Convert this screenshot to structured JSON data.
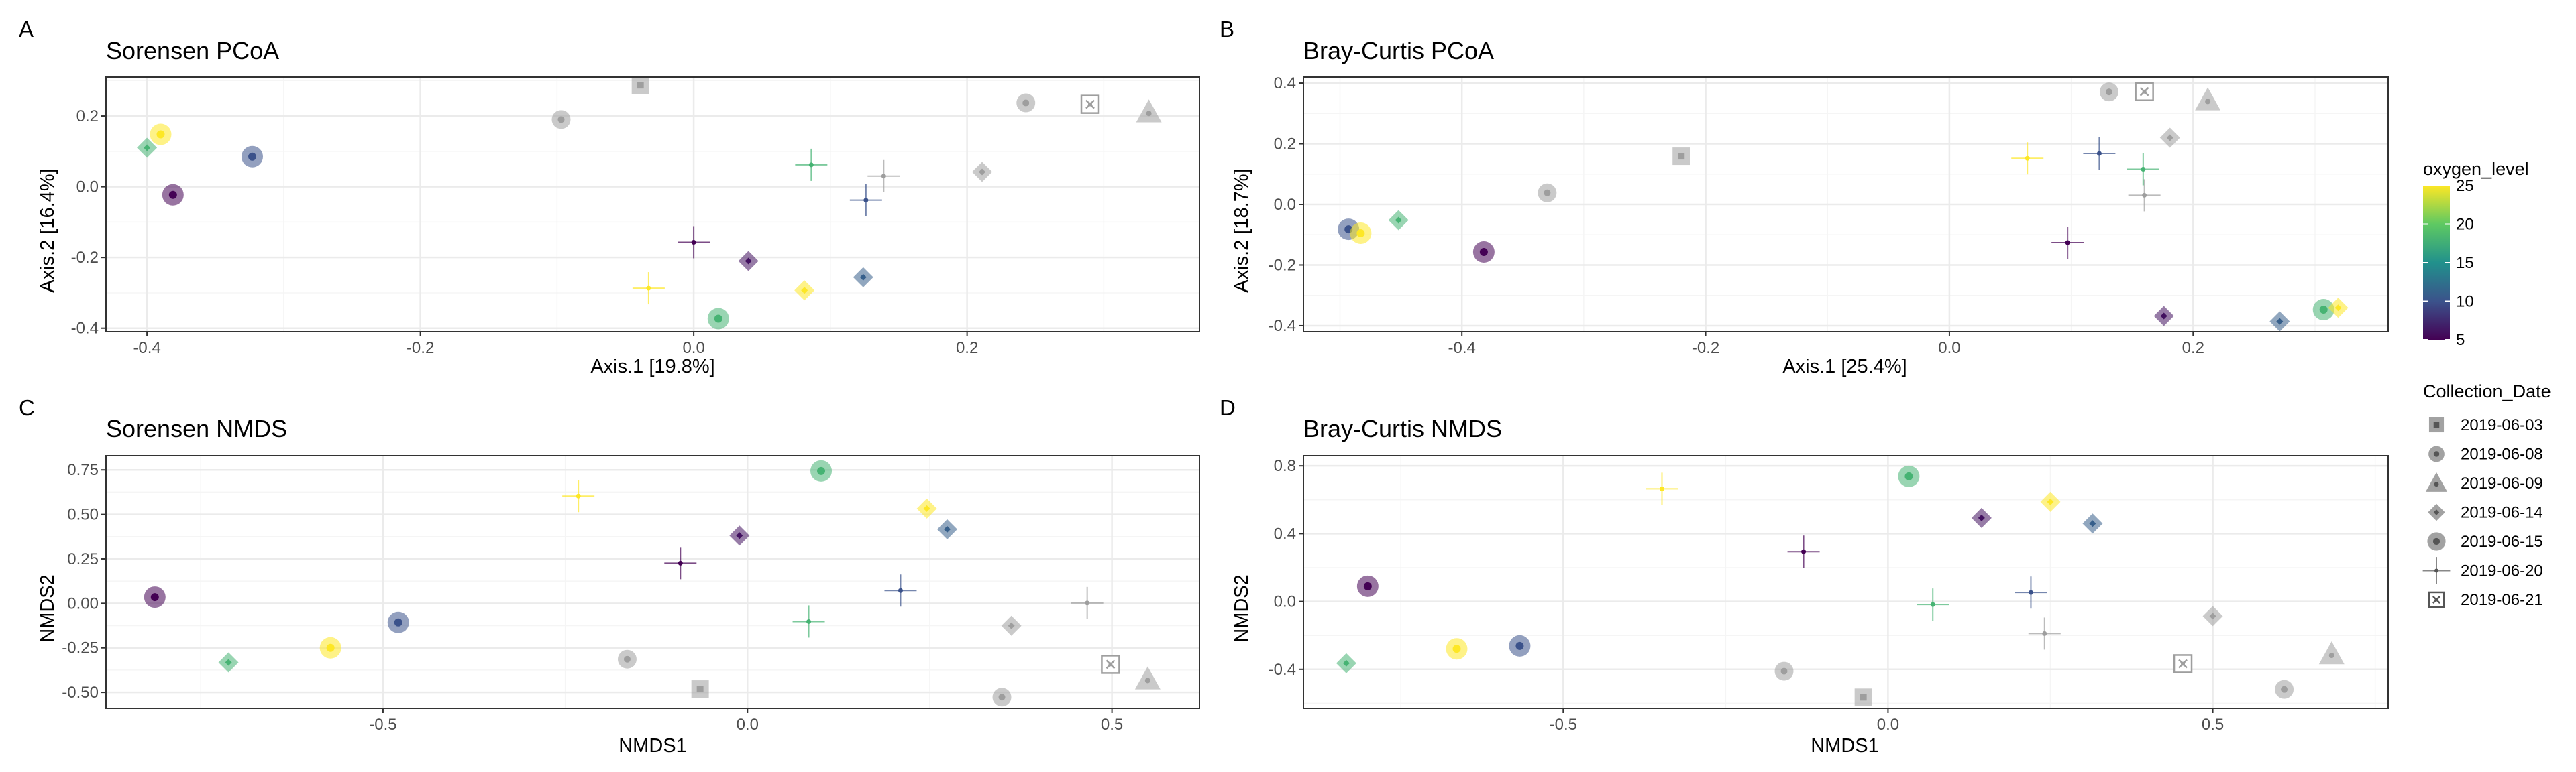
{
  "chart_data": [
    {
      "type": "scatter",
      "tag": "A",
      "title": "Sorensen PCoA",
      "xlabel": "Axis.1   [19.8%]",
      "ylabel": "Axis.2   [16.4%]",
      "xlim": [
        -0.43,
        0.37
      ],
      "ylim": [
        -0.41,
        0.31
      ],
      "xticks": [
        -0.4,
        -0.2,
        0.0,
        0.2
      ],
      "xtick_labels": [
        "-0.4",
        "-0.2",
        "0.0",
        "0.2"
      ],
      "yticks": [
        -0.4,
        -0.2,
        0.0,
        0.2
      ],
      "ytick_labels": [
        "-0.4",
        "-0.2",
        "0.0",
        "0.2"
      ],
      "grid": true,
      "points": [
        {
          "x": -0.039,
          "y": 0.287,
          "date": "2019-06-03",
          "oxygen": null
        },
        {
          "x": -0.097,
          "y": 0.19,
          "date": "2019-06-08",
          "oxygen": null
        },
        {
          "x": 0.243,
          "y": 0.237,
          "date": "2019-06-08",
          "oxygen": null
        },
        {
          "x": 0.333,
          "y": 0.211,
          "date": "2019-06-09",
          "oxygen": null
        },
        {
          "x": 0.211,
          "y": 0.042,
          "date": "2019-06-14",
          "oxygen": null
        },
        {
          "x": 0.139,
          "y": 0.03,
          "date": "2019-06-20",
          "oxygen": null
        },
        {
          "x": 0.29,
          "y": 0.233,
          "date": "2019-06-21",
          "oxygen": null
        },
        {
          "x": -0.39,
          "y": 0.148,
          "date": "2019-06-15",
          "oxygen": 25
        },
        {
          "x": -0.4,
          "y": 0.11,
          "date": "2019-06-14",
          "oxygen": 18
        },
        {
          "x": -0.323,
          "y": 0.085,
          "date": "2019-06-15",
          "oxygen": 10
        },
        {
          "x": -0.381,
          "y": -0.023,
          "date": "2019-06-15",
          "oxygen": 5
        },
        {
          "x": 0.086,
          "y": 0.062,
          "date": "2019-06-20",
          "oxygen": 18
        },
        {
          "x": 0.126,
          "y": -0.038,
          "date": "2019-06-20",
          "oxygen": 10
        },
        {
          "x": 0.0,
          "y": -0.157,
          "date": "2019-06-20",
          "oxygen": 5
        },
        {
          "x": 0.04,
          "y": -0.21,
          "date": "2019-06-14",
          "oxygen": 6
        },
        {
          "x": 0.124,
          "y": -0.256,
          "date": "2019-06-14",
          "oxygen": 11
        },
        {
          "x": -0.033,
          "y": -0.287,
          "date": "2019-06-20",
          "oxygen": 25
        },
        {
          "x": 0.081,
          "y": -0.293,
          "date": "2019-06-14",
          "oxygen": 25
        },
        {
          "x": 0.018,
          "y": -0.373,
          "date": "2019-06-15",
          "oxygen": 18
        }
      ]
    },
    {
      "type": "scatter",
      "tag": "B",
      "title": "Bray-Curtis PCoA",
      "xlabel": "Axis.1   [25.4%]",
      "ylabel": "Axis.2   [18.7%]",
      "xlim": [
        -0.53,
        0.36
      ],
      "ylim": [
        -0.42,
        0.42
      ],
      "xticks": [
        -0.4,
        -0.2,
        0.0,
        0.2
      ],
      "xtick_labels": [
        "-0.4",
        "-0.2",
        "0.0",
        "0.2"
      ],
      "yticks": [
        -0.4,
        -0.2,
        0.0,
        0.2,
        0.4
      ],
      "ytick_labels": [
        "-0.4",
        "-0.2",
        "0.0",
        "0.2",
        "0.4"
      ],
      "grid": true,
      "points": [
        {
          "x": 0.131,
          "y": 0.371,
          "date": "2019-06-08",
          "oxygen": null
        },
        {
          "x": 0.16,
          "y": 0.372,
          "date": "2019-06-21",
          "oxygen": null
        },
        {
          "x": 0.212,
          "y": 0.344,
          "date": "2019-06-09",
          "oxygen": null
        },
        {
          "x": 0.181,
          "y": 0.22,
          "date": "2019-06-14",
          "oxygen": null
        },
        {
          "x": -0.22,
          "y": 0.159,
          "date": "2019-06-03",
          "oxygen": null
        },
        {
          "x": -0.33,
          "y": 0.038,
          "date": "2019-06-08",
          "oxygen": null
        },
        {
          "x": 0.16,
          "y": 0.03,
          "date": "2019-06-20",
          "oxygen": null
        },
        {
          "x": 0.064,
          "y": 0.152,
          "date": "2019-06-20",
          "oxygen": 25
        },
        {
          "x": 0.123,
          "y": 0.168,
          "date": "2019-06-20",
          "oxygen": 10
        },
        {
          "x": 0.159,
          "y": 0.116,
          "date": "2019-06-20",
          "oxygen": 18
        },
        {
          "x": -0.493,
          "y": -0.082,
          "date": "2019-06-15",
          "oxygen": 10
        },
        {
          "x": -0.483,
          "y": -0.095,
          "date": "2019-06-15",
          "oxygen": 25
        },
        {
          "x": -0.452,
          "y": -0.052,
          "date": "2019-06-14",
          "oxygen": 18
        },
        {
          "x": -0.382,
          "y": -0.157,
          "date": "2019-06-15",
          "oxygen": 5
        },
        {
          "x": 0.097,
          "y": -0.126,
          "date": "2019-06-20",
          "oxygen": 5
        },
        {
          "x": 0.176,
          "y": -0.368,
          "date": "2019-06-14",
          "oxygen": 6
        },
        {
          "x": 0.271,
          "y": -0.386,
          "date": "2019-06-14",
          "oxygen": 11
        },
        {
          "x": 0.307,
          "y": -0.347,
          "date": "2019-06-15",
          "oxygen": 18
        },
        {
          "x": 0.319,
          "y": -0.341,
          "date": "2019-06-14",
          "oxygen": 25
        }
      ]
    },
    {
      "type": "scatter",
      "tag": "C",
      "title": "Sorensen NMDS",
      "xlabel": "NMDS1",
      "ylabel": "NMDS2",
      "xlim": [
        -0.88,
        0.62
      ],
      "ylim": [
        -0.59,
        0.83
      ],
      "xticks": [
        -0.5,
        0.0,
        0.5
      ],
      "xtick_labels": [
        "-0.5",
        "0.0",
        "0.5"
      ],
      "yticks": [
        -0.5,
        -0.25,
        0.0,
        0.25,
        0.5,
        0.75
      ],
      "ytick_labels": [
        "-0.50",
        "-0.25",
        "0.00",
        "0.25",
        "0.50",
        "0.75"
      ],
      "grid": true,
      "points": [
        {
          "x": 0.101,
          "y": 0.744,
          "date": "2019-06-15",
          "oxygen": 18
        },
        {
          "x": -0.232,
          "y": 0.603,
          "date": "2019-06-20",
          "oxygen": 25
        },
        {
          "x": 0.246,
          "y": 0.533,
          "date": "2019-06-14",
          "oxygen": 25
        },
        {
          "x": 0.274,
          "y": 0.416,
          "date": "2019-06-14",
          "oxygen": 11
        },
        {
          "x": -0.011,
          "y": 0.381,
          "date": "2019-06-14",
          "oxygen": 6
        },
        {
          "x": -0.092,
          "y": 0.226,
          "date": "2019-06-20",
          "oxygen": 5
        },
        {
          "x": 0.21,
          "y": 0.072,
          "date": "2019-06-20",
          "oxygen": 10
        },
        {
          "x": 0.466,
          "y": 0.002,
          "date": "2019-06-20",
          "oxygen": null
        },
        {
          "x": -0.813,
          "y": 0.035,
          "date": "2019-06-15",
          "oxygen": 5
        },
        {
          "x": 0.084,
          "y": -0.102,
          "date": "2019-06-20",
          "oxygen": 18
        },
        {
          "x": -0.479,
          "y": -0.107,
          "date": "2019-06-15",
          "oxygen": 10
        },
        {
          "x": 0.362,
          "y": -0.126,
          "date": "2019-06-14",
          "oxygen": null
        },
        {
          "x": -0.572,
          "y": -0.25,
          "date": "2019-06-15",
          "oxygen": 25
        },
        {
          "x": -0.712,
          "y": -0.332,
          "date": "2019-06-14",
          "oxygen": 18
        },
        {
          "x": -0.165,
          "y": -0.314,
          "date": "2019-06-08",
          "oxygen": null
        },
        {
          "x": 0.498,
          "y": -0.343,
          "date": "2019-06-21",
          "oxygen": null
        },
        {
          "x": 0.549,
          "y": -0.426,
          "date": "2019-06-09",
          "oxygen": null
        },
        {
          "x": -0.065,
          "y": -0.481,
          "date": "2019-06-03",
          "oxygen": null
        },
        {
          "x": 0.349,
          "y": -0.527,
          "date": "2019-06-08",
          "oxygen": null
        }
      ]
    },
    {
      "type": "scatter",
      "tag": "D",
      "title": "Bray-Curtis NMDS",
      "xlabel": "NMDS1",
      "ylabel": "NMDS2",
      "xlim": [
        -0.9,
        0.77
      ],
      "ylim": [
        -0.63,
        0.86
      ],
      "xticks": [
        -0.5,
        0.0,
        0.5
      ],
      "xtick_labels": [
        "-0.5",
        "0.0",
        "0.5"
      ],
      "yticks": [
        -0.4,
        0.0,
        0.4,
        0.8
      ],
      "ytick_labels": [
        "-0.4",
        "0.0",
        "0.4",
        "0.8"
      ],
      "grid": true,
      "points": [
        {
          "x": 0.032,
          "y": 0.738,
          "date": "2019-06-15",
          "oxygen": 18
        },
        {
          "x": -0.348,
          "y": 0.665,
          "date": "2019-06-20",
          "oxygen": 25
        },
        {
          "x": 0.25,
          "y": 0.588,
          "date": "2019-06-14",
          "oxygen": 25
        },
        {
          "x": 0.144,
          "y": 0.493,
          "date": "2019-06-14",
          "oxygen": 6
        },
        {
          "x": 0.315,
          "y": 0.46,
          "date": "2019-06-14",
          "oxygen": 11
        },
        {
          "x": -0.13,
          "y": 0.294,
          "date": "2019-06-20",
          "oxygen": 5
        },
        {
          "x": -0.801,
          "y": 0.09,
          "date": "2019-06-15",
          "oxygen": 5
        },
        {
          "x": 0.22,
          "y": 0.053,
          "date": "2019-06-20",
          "oxygen": 10
        },
        {
          "x": 0.069,
          "y": -0.018,
          "date": "2019-06-20",
          "oxygen": 18
        },
        {
          "x": 0.5,
          "y": -0.086,
          "date": "2019-06-14",
          "oxygen": null
        },
        {
          "x": 0.241,
          "y": -0.189,
          "date": "2019-06-20",
          "oxygen": null
        },
        {
          "x": -0.567,
          "y": -0.262,
          "date": "2019-06-15",
          "oxygen": 10
        },
        {
          "x": -0.664,
          "y": -0.279,
          "date": "2019-06-15",
          "oxygen": 25
        },
        {
          "x": 0.683,
          "y": -0.31,
          "date": "2019-06-09",
          "oxygen": null
        },
        {
          "x": -0.834,
          "y": -0.364,
          "date": "2019-06-14",
          "oxygen": 18
        },
        {
          "x": 0.454,
          "y": -0.367,
          "date": "2019-06-21",
          "oxygen": null
        },
        {
          "x": -0.16,
          "y": -0.411,
          "date": "2019-06-08",
          "oxygen": null
        },
        {
          "x": 0.61,
          "y": -0.518,
          "date": "2019-06-08",
          "oxygen": null
        },
        {
          "x": -0.038,
          "y": -0.564,
          "date": "2019-06-03",
          "oxygen": null
        }
      ]
    }
  ],
  "legend": {
    "color_title": "oxygen_level",
    "color_ticks": [
      5,
      10,
      15,
      20,
      25
    ],
    "color_tick_labels": [
      "5",
      "10",
      "15",
      "20",
      "25"
    ],
    "color_range": [
      5,
      25
    ],
    "na_color": "#9e9e9e",
    "shape_title": "Collection_Date",
    "shape_items": [
      {
        "label": "2019-06-03",
        "shape": "square"
      },
      {
        "label": "2019-06-08",
        "shape": "circle-dot"
      },
      {
        "label": "2019-06-09",
        "shape": "triangle"
      },
      {
        "label": "2019-06-14",
        "shape": "diamond"
      },
      {
        "label": "2019-06-15",
        "shape": "circle-dot-large"
      },
      {
        "label": "2019-06-20",
        "shape": "cross"
      },
      {
        "label": "2019-06-21",
        "shape": "boxed-x"
      }
    ]
  },
  "colors": {
    "viridis": [
      "#440154",
      "#3b528b",
      "#21918c",
      "#5ec962",
      "#fde725"
    ],
    "grid_major": "#ebebeb",
    "grid_minor": "#f5f5f5",
    "panel_border": "#333333",
    "text": "#000000",
    "axis_text": "#4d4d4d"
  }
}
